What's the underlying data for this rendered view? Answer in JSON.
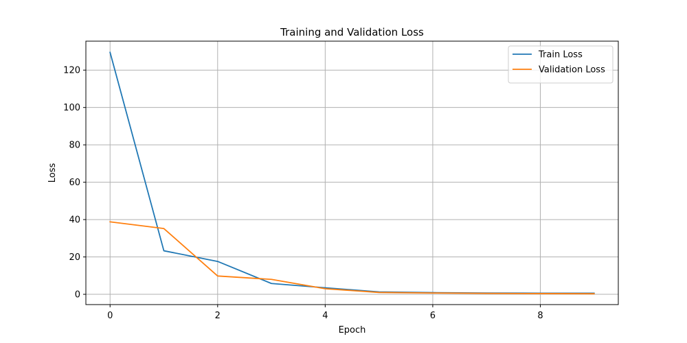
{
  "chart_data": {
    "type": "line",
    "title": "Training and Validation Loss",
    "xlabel": "Epoch",
    "ylabel": "Loss",
    "x": [
      0,
      1,
      2,
      3,
      4,
      5,
      6,
      7,
      8,
      9
    ],
    "xlim": [
      -0.45,
      9.45
    ],
    "ylim": [
      -5.5,
      135.5
    ],
    "xticks": [
      0,
      2,
      4,
      6,
      8
    ],
    "yticks": [
      0,
      20,
      40,
      60,
      80,
      100,
      120
    ],
    "grid": true,
    "legend_position": "top-right",
    "series": [
      {
        "name": "Train Loss",
        "color": "#1f77b4",
        "values": [
          129.5,
          23.3,
          17.6,
          5.8,
          3.5,
          1.3,
          0.9,
          0.7,
          0.6,
          0.6
        ]
      },
      {
        "name": "Validation Loss",
        "color": "#ff7f0e",
        "values": [
          38.8,
          35.2,
          9.8,
          8.0,
          3.0,
          1.0,
          0.7,
          0.5,
          0.4,
          0.3
        ]
      }
    ]
  }
}
